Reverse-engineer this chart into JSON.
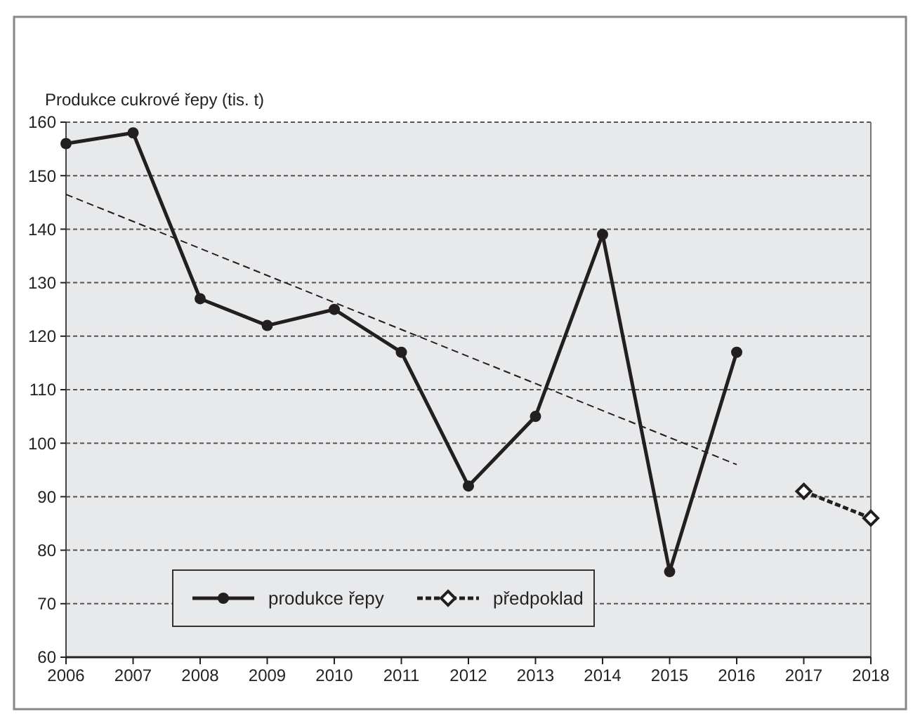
{
  "chart_data": {
    "type": "line",
    "ylabel": "Produkce cukrové řepy (tis. t)",
    "xlim": [
      2006,
      2018
    ],
    "xticks": [
      2006,
      2007,
      2008,
      2009,
      2010,
      2011,
      2012,
      2013,
      2014,
      2015,
      2016,
      2017,
      2018
    ],
    "ylim": [
      60,
      160
    ],
    "yticks": [
      60,
      70,
      80,
      90,
      100,
      110,
      120,
      130,
      140,
      150,
      160
    ],
    "grid": "y",
    "legend": "bottom left",
    "series": [
      {
        "name": "produkce řepy",
        "color": "#231f20",
        "marker": "circle",
        "line_style": "solid",
        "x": [
          2006,
          2007,
          2008,
          2009,
          2010,
          2011,
          2012,
          2013,
          2014,
          2015,
          2016
        ],
        "values": [
          156,
          158,
          127,
          122,
          125,
          117,
          92,
          105,
          139,
          76,
          117
        ]
      },
      {
        "name": "předpoklad",
        "color": "#231f20",
        "marker": "diamond",
        "line_style": "dashed",
        "x": [
          2017,
          2018
        ],
        "values": [
          91,
          86
        ]
      },
      {
        "type": "line",
        "color": "#231f20",
        "marker": "none",
        "line_style": "dashed",
        "x": [
          2006,
          2016
        ],
        "values": [
          146.5,
          96
        ]
      }
    ]
  }
}
